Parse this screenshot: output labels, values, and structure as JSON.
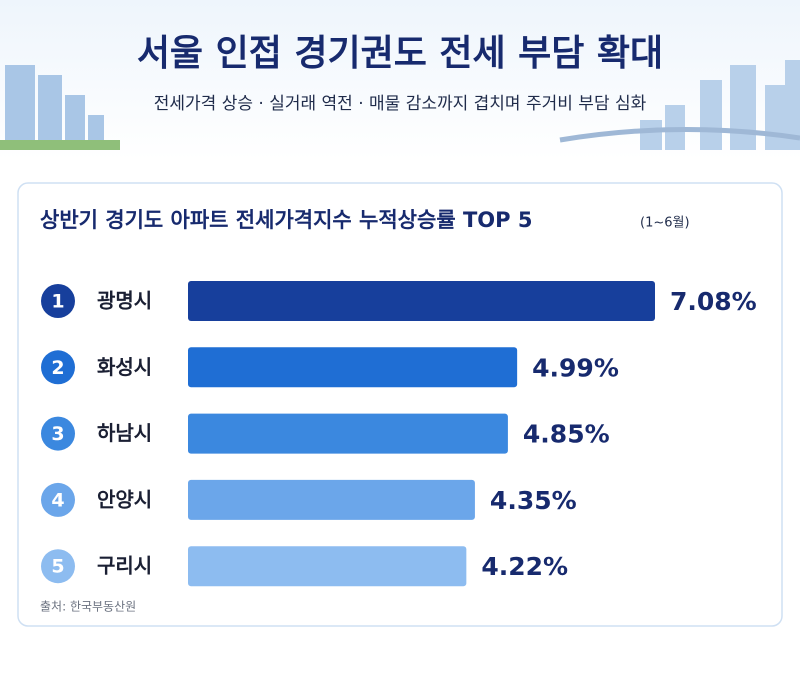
{
  "header": {
    "title": "서울 인접 경기권도 전세 부담 확대",
    "subtitle": "전세가격 상승 · 실거래 역전 · 매물 감소까지 겹치며 주거비 부담 심화"
  },
  "chart_data": {
    "type": "bar",
    "orientation": "horizontal",
    "title": "상반기 경기도 아파트 전세가격지수 누적상승률 TOP 5",
    "subtitle": "(1~6월)",
    "ranks": [
      1,
      2,
      3,
      4,
      5
    ],
    "categories": [
      "광명시",
      "화성시",
      "하남시",
      "안양시",
      "구리시"
    ],
    "values": [
      7.08,
      4.99,
      4.85,
      4.35,
      4.22
    ],
    "value_labels": [
      "7.08%",
      "4.99%",
      "4.85%",
      "4.35%",
      "4.22%"
    ],
    "colors": [
      "#173f9c",
      "#1f6ed4",
      "#3b88df",
      "#6ba6ea",
      "#8dbcf0"
    ],
    "source": "출처: 한국부동산원"
  }
}
